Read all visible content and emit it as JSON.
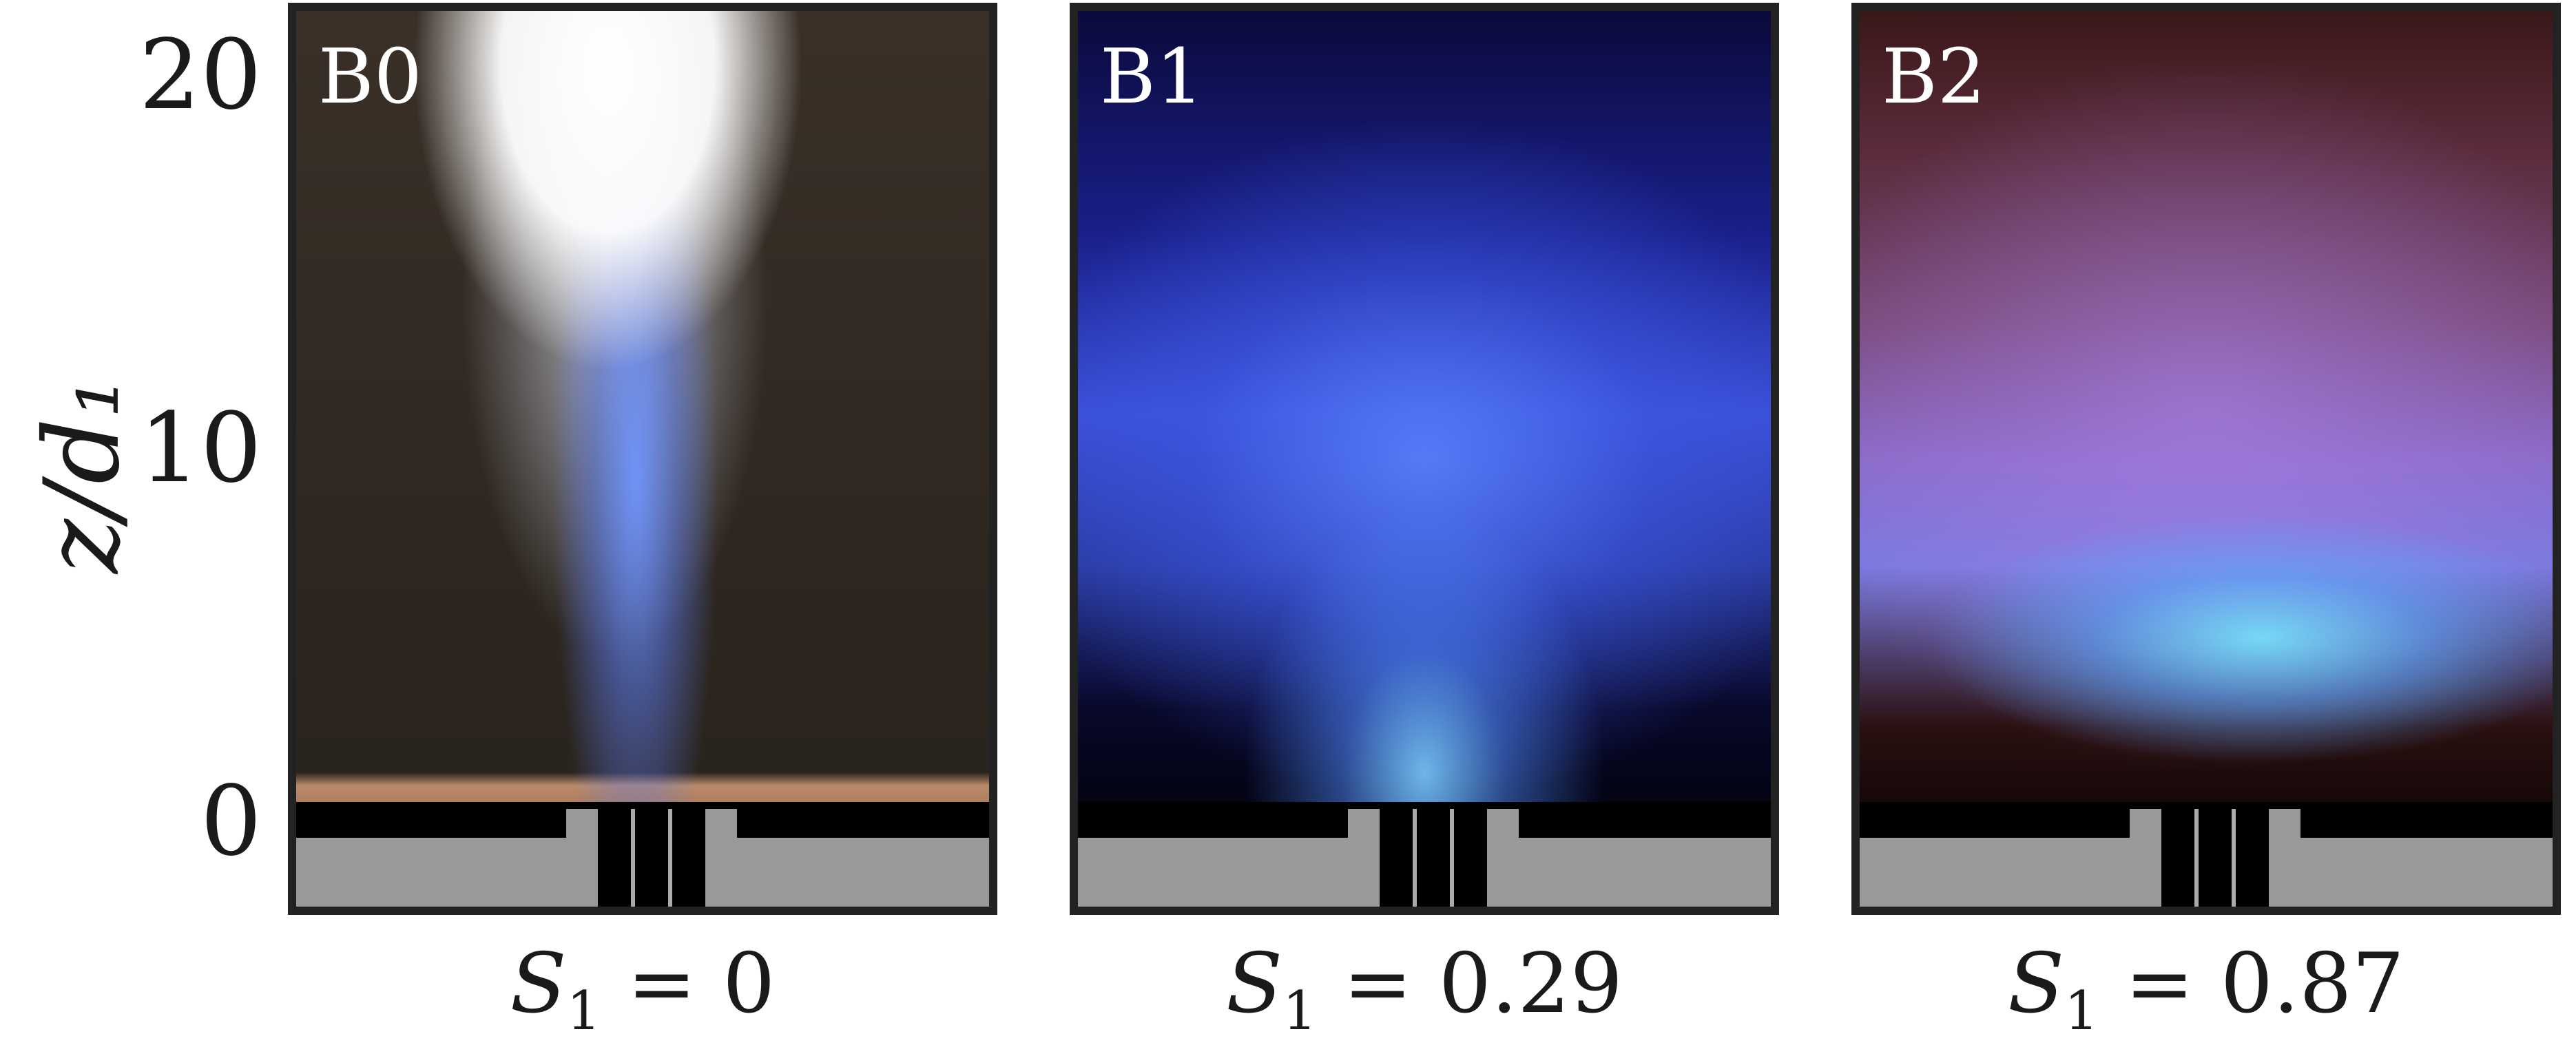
{
  "y_axis": {
    "label": "z/d₁",
    "ticks": [
      "20",
      "10",
      "0"
    ]
  },
  "panels": [
    {
      "tag": "B0",
      "caption_var": "S",
      "caption_sub": "1",
      "caption_rest": " = 0"
    },
    {
      "tag": "B1",
      "caption_var": "S",
      "caption_sub": "1",
      "caption_rest": " = 0.29"
    },
    {
      "tag": "B2",
      "caption_var": "S",
      "caption_sub": "1",
      "caption_rest": " = 0.87"
    }
  ],
  "colors": {
    "frame": "#222222",
    "burner_gray": "#999999",
    "burner_black": "#000000"
  }
}
